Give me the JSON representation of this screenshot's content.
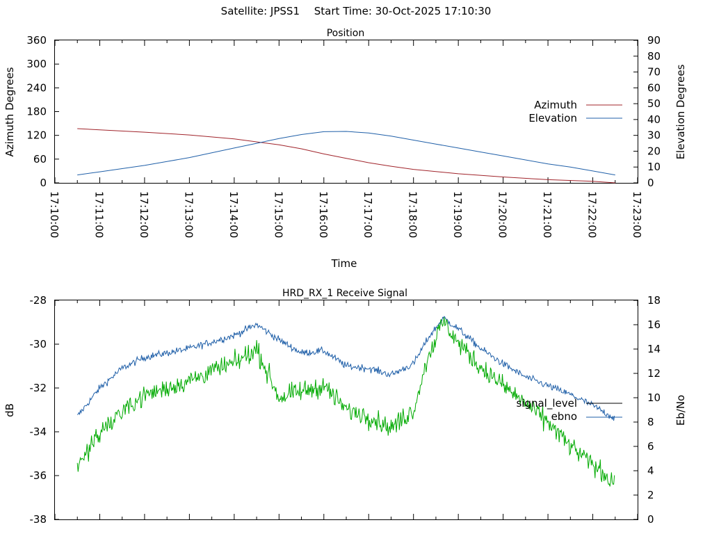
{
  "header": {
    "satellite": "Satellite: JPSS1",
    "start_time": "Start Time: 30-Oct-2025 17:10:30"
  },
  "chart_data": [
    {
      "type": "line",
      "title": "Position",
      "xlabel": "Time",
      "ylabel": "Azimuth Degrees",
      "y2label": "Elevation Degrees",
      "xlim": [
        "17:10:00",
        "17:23:00"
      ],
      "ylim": [
        0,
        360
      ],
      "y2lim": [
        0,
        90
      ],
      "x_ticks": [
        "17:10:00",
        "17:11:00",
        "17:12:00",
        "17:13:00",
        "17:14:00",
        "17:15:00",
        "17:16:00",
        "17:17:00",
        "17:18:00",
        "17:19:00",
        "17:20:00",
        "17:21:00",
        "17:22:00",
        "17:23:00"
      ],
      "y_ticks": [
        0,
        60,
        120,
        180,
        240,
        300,
        360
      ],
      "y2_ticks": [
        0,
        10,
        20,
        30,
        40,
        50,
        60,
        70,
        80,
        90
      ],
      "legend_position": "right",
      "grid": false,
      "series": [
        {
          "name": "Azimuth",
          "axis": "y",
          "color": "#a0232a",
          "x": [
            "17:10:30",
            "17:11:00",
            "17:12:00",
            "17:13:00",
            "17:14:00",
            "17:15:00",
            "17:15:30",
            "17:16:00",
            "17:16:30",
            "17:17:00",
            "17:17:30",
            "17:18:00",
            "17:19:00",
            "17:20:00",
            "17:21:00",
            "17:22:00",
            "17:22:30"
          ],
          "values": [
            137,
            134,
            128,
            121,
            111,
            96,
            86,
            73,
            62,
            51,
            42,
            34,
            23,
            15,
            8,
            4,
            0
          ]
        },
        {
          "name": "Elevation",
          "axis": "y2",
          "color": "#1f5fa8",
          "x": [
            "17:10:30",
            "17:11:00",
            "17:11:30",
            "17:12:00",
            "17:12:30",
            "17:13:00",
            "17:13:30",
            "17:14:00",
            "17:14:30",
            "17:15:00",
            "17:15:30",
            "17:16:00",
            "17:16:30",
            "17:17:00",
            "17:17:30",
            "17:18:00",
            "17:18:30",
            "17:19:00",
            "17:19:30",
            "17:20:00",
            "17:20:30",
            "17:21:00",
            "17:21:30",
            "17:22:00",
            "17:22:30"
          ],
          "values": [
            5,
            7,
            9,
            11,
            13.5,
            16,
            19,
            22,
            25,
            28,
            30.5,
            32.3,
            32.5,
            31.5,
            29.5,
            27,
            24.5,
            22,
            19.5,
            17,
            14.5,
            12,
            10,
            7.5,
            5
          ]
        }
      ]
    },
    {
      "type": "line",
      "title": "HRD_RX_1 Receive Signal",
      "ylabel": "dB",
      "y2label": "Eb/No",
      "xlim": [
        "17:10:00",
        "17:23:00"
      ],
      "ylim": [
        -38,
        -28
      ],
      "y2lim": [
        0,
        18
      ],
      "y_ticks": [
        -38,
        -36,
        -34,
        -32,
        -30,
        -28
      ],
      "y2_ticks": [
        0,
        2,
        4,
        6,
        8,
        10,
        12,
        14,
        16,
        18
      ],
      "legend_position": "right",
      "grid": false,
      "series": [
        {
          "name": "signal_level",
          "axis": "y",
          "color": "#1f5fa8",
          "x": [
            "17:10:30",
            "17:11:00",
            "17:11:30",
            "17:12:00",
            "17:12:30",
            "17:13:00",
            "17:13:30",
            "17:14:00",
            "17:14:30",
            "17:15:00",
            "17:15:30",
            "17:16:00",
            "17:16:30",
            "17:17:00",
            "17:17:30",
            "17:18:00",
            "17:18:20",
            "17:18:40",
            "17:19:00",
            "17:19:30",
            "17:20:00",
            "17:20:30",
            "17:21:00",
            "17:21:30",
            "17:22:00",
            "17:22:30"
          ],
          "values": [
            -33.3,
            -32.0,
            -31.1,
            -30.6,
            -30.4,
            -30.2,
            -29.9,
            -29.6,
            -29.1,
            -29.8,
            -30.4,
            -30.3,
            -31.0,
            -31.1,
            -31.4,
            -30.9,
            -29.7,
            -28.8,
            -29.3,
            -30.2,
            -30.9,
            -31.5,
            -31.9,
            -32.3,
            -32.8,
            -33.4
          ]
        },
        {
          "name": "ebno",
          "axis": "y2",
          "color": "#00aa00",
          "x": [
            "17:10:30",
            "17:11:00",
            "17:11:30",
            "17:12:00",
            "17:12:30",
            "17:13:00",
            "17:13:30",
            "17:14:00",
            "17:14:30",
            "17:15:00",
            "17:15:30",
            "17:16:00",
            "17:16:30",
            "17:17:00",
            "17:17:30",
            "17:18:00",
            "17:18:20",
            "17:18:40",
            "17:19:00",
            "17:19:30",
            "17:20:00",
            "17:20:30",
            "17:21:00",
            "17:21:30",
            "17:22:00",
            "17:22:30"
          ],
          "values": [
            4.5,
            7.0,
            9.0,
            10.2,
            10.8,
            11.4,
            12.2,
            12.8,
            14.0,
            10.0,
            10.5,
            11.0,
            9.0,
            8.5,
            7.5,
            9.0,
            13.5,
            16.3,
            14.5,
            12.5,
            11.0,
            9.5,
            8.0,
            6.0,
            4.5,
            3.0
          ]
        }
      ]
    }
  ]
}
